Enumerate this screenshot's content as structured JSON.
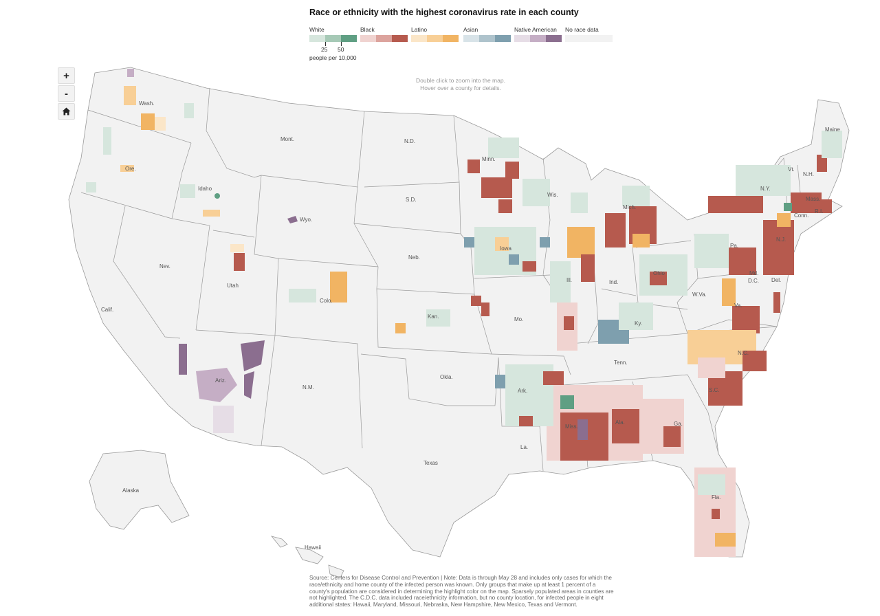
{
  "title": "Race or ethnicity with the highest coronavirus rate in each county",
  "legend": {
    "groups": [
      {
        "label": "White",
        "colors": [
          "#d6e6dd",
          "#a6c9b6",
          "#5f9f83"
        ]
      },
      {
        "label": "Black",
        "colors": [
          "#f0d3d0",
          "#dca39d",
          "#b65a4e"
        ]
      },
      {
        "label": "Latino",
        "colors": [
          "#fbe6c8",
          "#f8cf96",
          "#f1b463"
        ]
      },
      {
        "label": "Asian",
        "colors": [
          "#d8e3e8",
          "#aec3cc",
          "#7e9fae"
        ]
      },
      {
        "label": "Native American",
        "colors": [
          "#e6dde6",
          "#c5aec5",
          "#8b6e8f"
        ]
      },
      {
        "label": "No race data",
        "colors": [
          "#f2f2f2"
        ]
      }
    ],
    "tick_labels": [
      "25",
      "50"
    ],
    "units": "people per 10,000"
  },
  "controls": {
    "zoom_in": "+",
    "zoom_out": "-",
    "home_icon": "home-icon"
  },
  "hint": {
    "line1": "Double click to zoom into the map.",
    "line2": "Hover over a county for details."
  },
  "states": {
    "wash": "Wash.",
    "ore": "Ore.",
    "calif": "Calif.",
    "nev": "Nev.",
    "idaho": "Idaho",
    "mont": "Mont.",
    "wyo": "Wyo.",
    "utah": "Utah",
    "ariz": "Ariz.",
    "colo": "Colo.",
    "nm": "N.M.",
    "nd": "N.D.",
    "sd": "S.D.",
    "neb": "Neb.",
    "kan": "Kan.",
    "okla": "Okla.",
    "texas": "Texas",
    "minn": "Minn.",
    "iowa": "Iowa",
    "mo": "Mo.",
    "ark": "Ark.",
    "la": "La.",
    "wis": "Wis.",
    "ill": "Ill.",
    "mich": "Mich.",
    "ind": "Ind.",
    "ohio": "Ohio",
    "ky": "Ky.",
    "tenn": "Tenn.",
    "miss": "Miss.",
    "ala": "Ala.",
    "ga": "Ga.",
    "fla": "Fla.",
    "sc": "S.C.",
    "nc": "N.C.",
    "va": "Va.",
    "wva": "W.Va.",
    "pa": "Pa.",
    "ny": "N.Y.",
    "vt": "Vt.",
    "nh": "N.H.",
    "maine": "Maine",
    "mass": "Mass.",
    "ri": "R.I.",
    "conn": "Conn.",
    "nj": "N.J.",
    "del": "Del.",
    "md": "Md.",
    "dc": "D.C.",
    "alaska": "Alaska",
    "hawaii": "Hawaii"
  },
  "source": "Source: Centers for Disease Control and Prevention | Note: Data is through May 28 and includes only cases for which the race/ethnicity and home county of the infected person was known. Only groups that make up at least 1 percent of a county's population are considered in determining the highlight color on the map. Sparsely populated areas in counties are not highlighted. The C.D.C. data included race/ethnicity information, but no county location, for infected people in eight additional states: Hawaii, Maryland, Missouri, Nebraska, New Hampshire, New Mexico, Texas and Vermont."
}
